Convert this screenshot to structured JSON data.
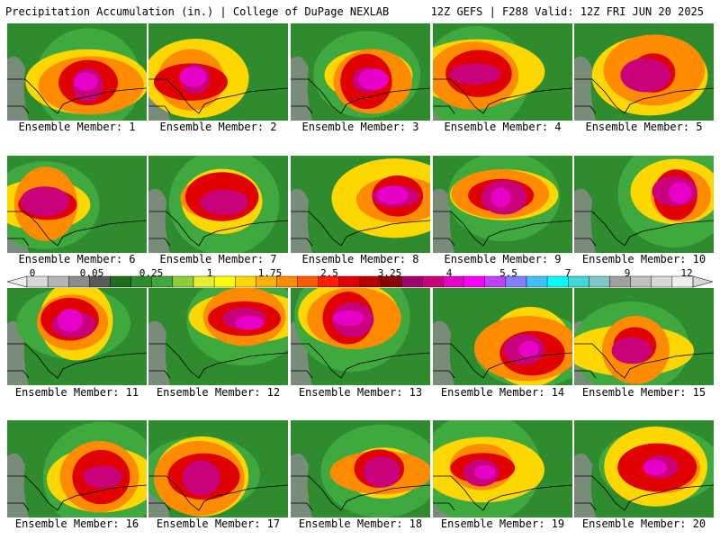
{
  "header": {
    "left_title": "Precipitation Accumulation (in.) | College of DuPage NEXLAB",
    "right_title": "12Z GEFS | F288 Valid: 12Z FRI JUN 20 2025"
  },
  "legend": {
    "tick_labels": [
      "0",
      "0.05",
      "0.25",
      "1",
      "1.75",
      "2.5",
      "3.25",
      "4",
      "5.5",
      "7",
      "9",
      "12"
    ],
    "colors": [
      "#d8d8d8",
      "#b4b4b4",
      "#8c8c8c",
      "#5a5a5a",
      "#1f6b1f",
      "#2e8b2e",
      "#3fa83f",
      "#8fcc3a",
      "#e6f032",
      "#ffff00",
      "#ffd700",
      "#ffb000",
      "#ff8c00",
      "#ff5a00",
      "#ff1e00",
      "#e00000",
      "#b40000",
      "#8b0000",
      "#a0006e",
      "#c8007a",
      "#e600c8",
      "#ff00ff",
      "#c040ff",
      "#8080ff",
      "#40c0ff",
      "#00ffff",
      "#40d8d8",
      "#80c8c8",
      "#a0a0a0",
      "#c0c0c0",
      "#d8d8d8",
      "#efefef"
    ]
  },
  "panels": [
    {
      "caption": "Ensemble Member: 1"
    },
    {
      "caption": "Ensemble Member: 2"
    },
    {
      "caption": "Ensemble Member: 3"
    },
    {
      "caption": "Ensemble Member: 4"
    },
    {
      "caption": "Ensemble Member: 5"
    },
    {
      "caption": "Ensemble Member: 6"
    },
    {
      "caption": "Ensemble Member: 7"
    },
    {
      "caption": "Ensemble Member: 8"
    },
    {
      "caption": "Ensemble Member: 9"
    },
    {
      "caption": "Ensemble Member: 10"
    },
    {
      "caption": "Ensemble Member: 11"
    },
    {
      "caption": "Ensemble Member: 12"
    },
    {
      "caption": "Ensemble Member: 13"
    },
    {
      "caption": "Ensemble Member: 14"
    },
    {
      "caption": "Ensemble Member: 15"
    },
    {
      "caption": "Ensemble Member: 16"
    },
    {
      "caption": "Ensemble Member: 17"
    },
    {
      "caption": "Ensemble Member: 18"
    },
    {
      "caption": "Ensemble Member: 19"
    },
    {
      "caption": "Ensemble Member: 20"
    }
  ]
}
